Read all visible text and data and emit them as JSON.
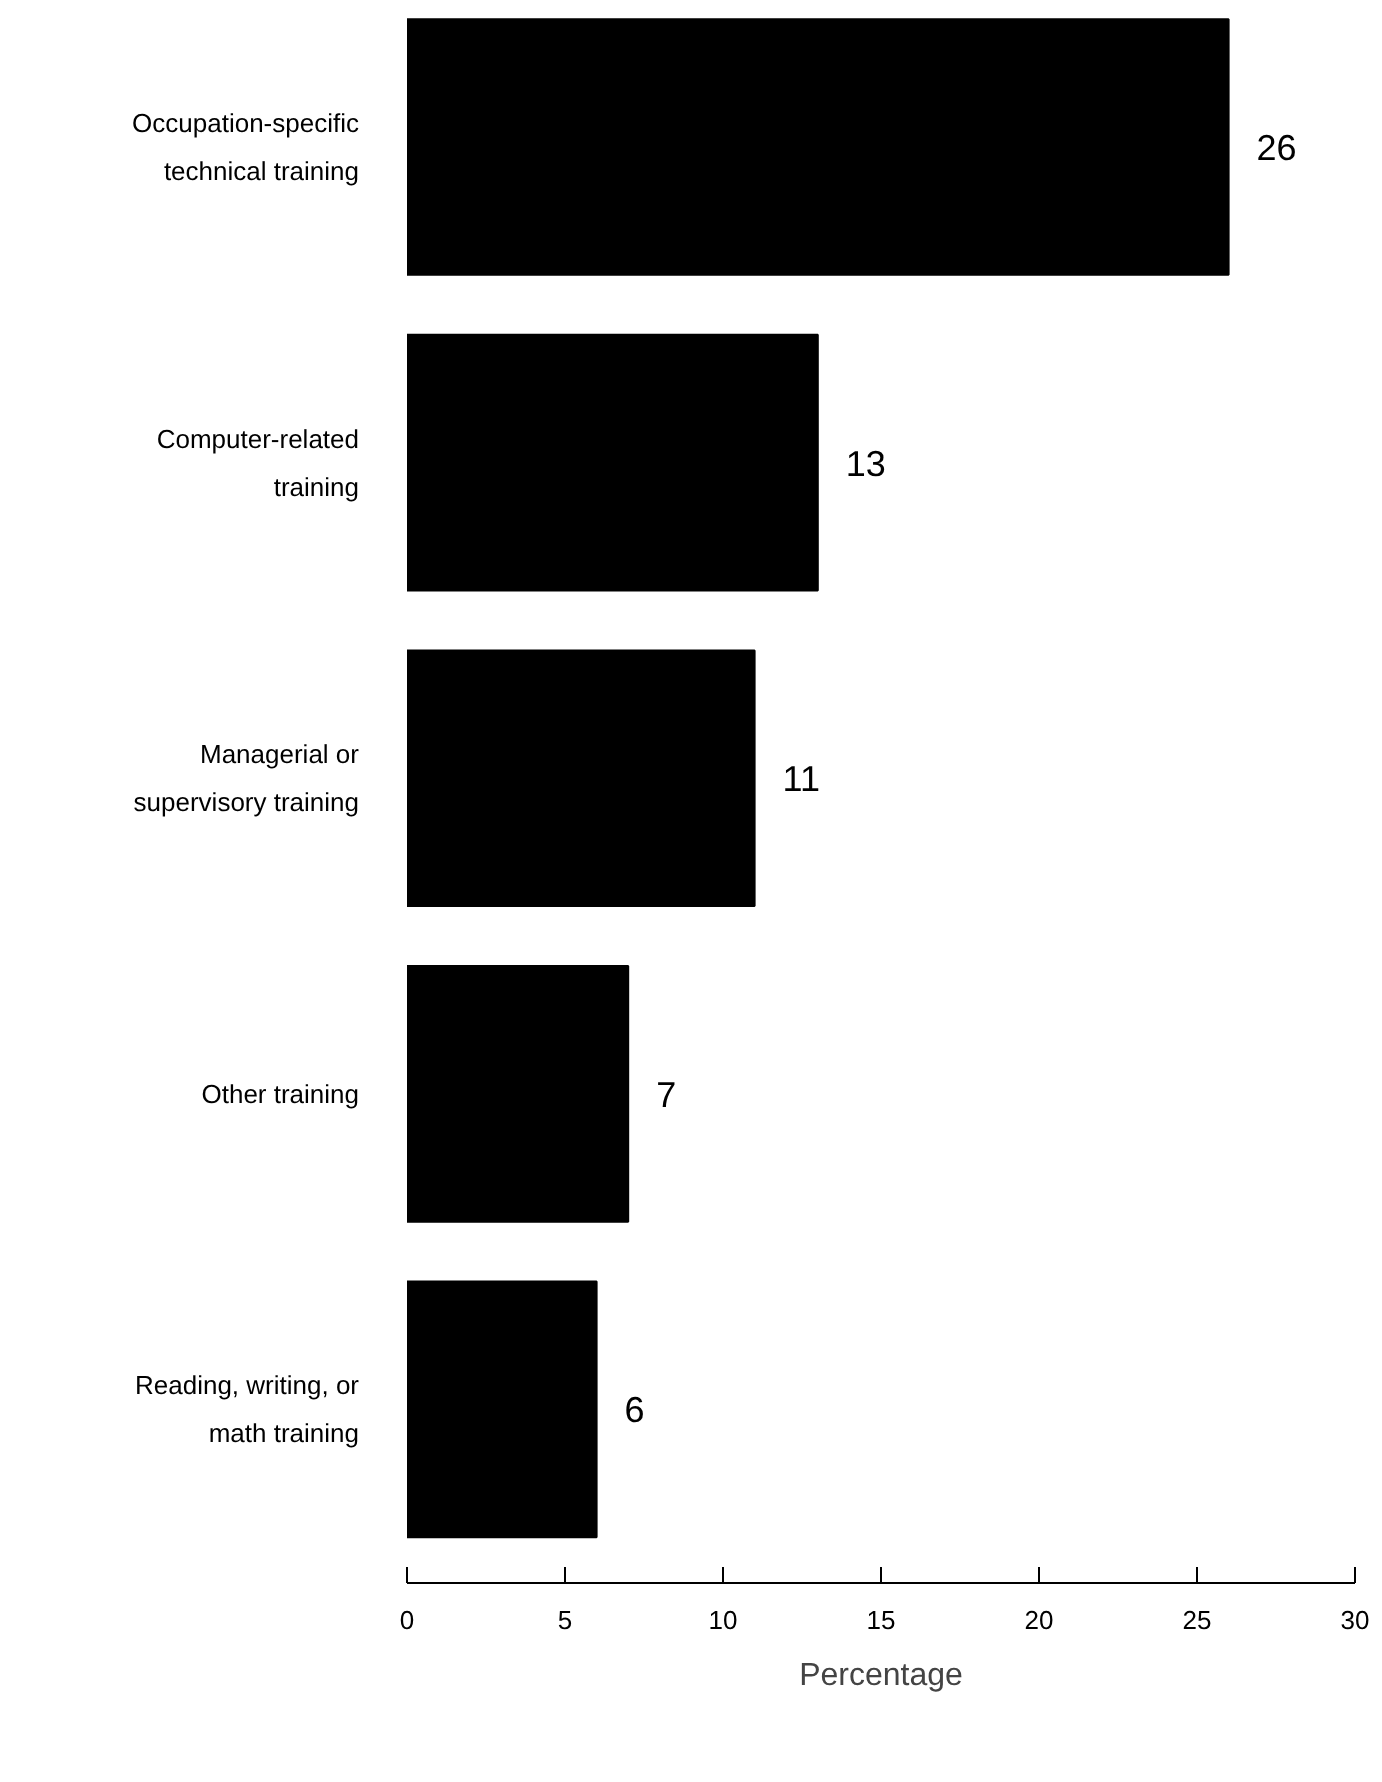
{
  "chart_data": {
    "type": "bar",
    "orientation": "horizontal",
    "xlabel": "Percentage",
    "categories": [
      "Occupation-specific technical training",
      "Computer-related training",
      "Managerial or supervisory training",
      "Other training",
      "Reading, writing, or math training"
    ],
    "values": [
      26,
      13,
      11,
      7,
      6
    ],
    "color": "#000000",
    "xlim": [
      0,
      30
    ],
    "xticks": [
      0,
      5,
      10,
      15,
      20,
      25,
      30
    ],
    "data_labels": true,
    "grid": false
  }
}
